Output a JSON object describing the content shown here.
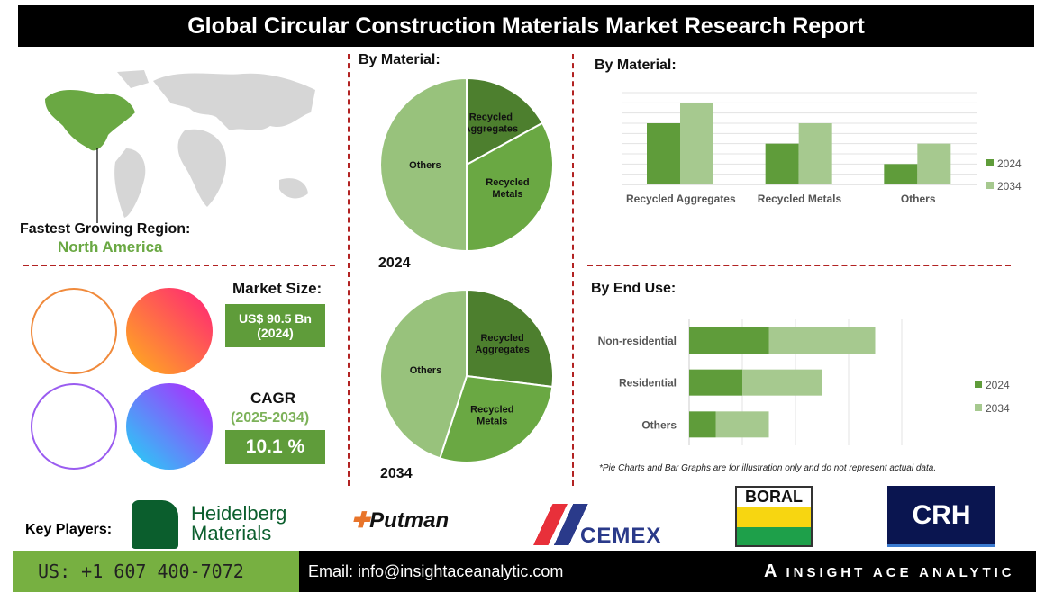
{
  "title": "Global Circular Construction Materials Market Research Report",
  "region": {
    "label": "Fastest Growing Region:",
    "value": "North America"
  },
  "market_size": {
    "label": "Market Size:",
    "value": "US$ 90.5 Bn",
    "year": "(2024)"
  },
  "cagr": {
    "label": "CAGR",
    "period": "(2025-2034)",
    "value": "10.1 %"
  },
  "colors": {
    "dark_green": "#5f9c3a",
    "light_green": "#a6c98f",
    "pie_dark": "#4d7f2e",
    "pie_mid": "#6aa843",
    "pie_light": "#98c27c",
    "divider": "#b22222"
  },
  "chart_data": [
    {
      "type": "pie",
      "title": "By Material:",
      "year_label": "2024",
      "slices": [
        {
          "label": "Recycled Aggregates",
          "value": 17
        },
        {
          "label": "Recycled Metals",
          "value": 33
        },
        {
          "label": "Others",
          "value": 50
        }
      ]
    },
    {
      "type": "pie",
      "year_label": "2034",
      "slices": [
        {
          "label": "Recycled Aggregates",
          "value": 27
        },
        {
          "label": "Recycled Metals",
          "value": 28
        },
        {
          "label": "Others",
          "value": 45
        }
      ]
    },
    {
      "type": "bar",
      "title": "By Material:",
      "categories": [
        "Recycled Aggregates",
        "Recycled Metals",
        "Others"
      ],
      "series": [
        {
          "name": "2024",
          "values": [
            6,
            4,
            2
          ]
        },
        {
          "name": "2034",
          "values": [
            8,
            6,
            4
          ]
        }
      ],
      "ylim": [
        0,
        9
      ],
      "grid": true,
      "legend": "right"
    },
    {
      "type": "bar",
      "orientation": "horizontal",
      "stacked": true,
      "title": "By End Use:",
      "categories": [
        "Non-residential",
        "Residential",
        "Others"
      ],
      "series": [
        {
          "name": "2024",
          "values": [
            1.5,
            1.0,
            0.5
          ]
        },
        {
          "name": "2034",
          "values": [
            2.0,
            1.5,
            1.0
          ]
        }
      ],
      "xlim": [
        0,
        4
      ],
      "grid": true,
      "legend": "right"
    }
  ],
  "note": "*Pie Charts and Bar Graphs are for illustration only and do not represent actual data.",
  "key_players": {
    "label": "Key Players:",
    "players": [
      "Heidelberg",
      "Materials",
      "Putman",
      "CEMEX",
      "BORAL",
      "CRH"
    ]
  },
  "footer": {
    "phone": "US: +1 607 400-7072",
    "email": "Email: info@insightaceanalytic.com",
    "brand": "INSIGHT ACE ANALYTIC"
  }
}
